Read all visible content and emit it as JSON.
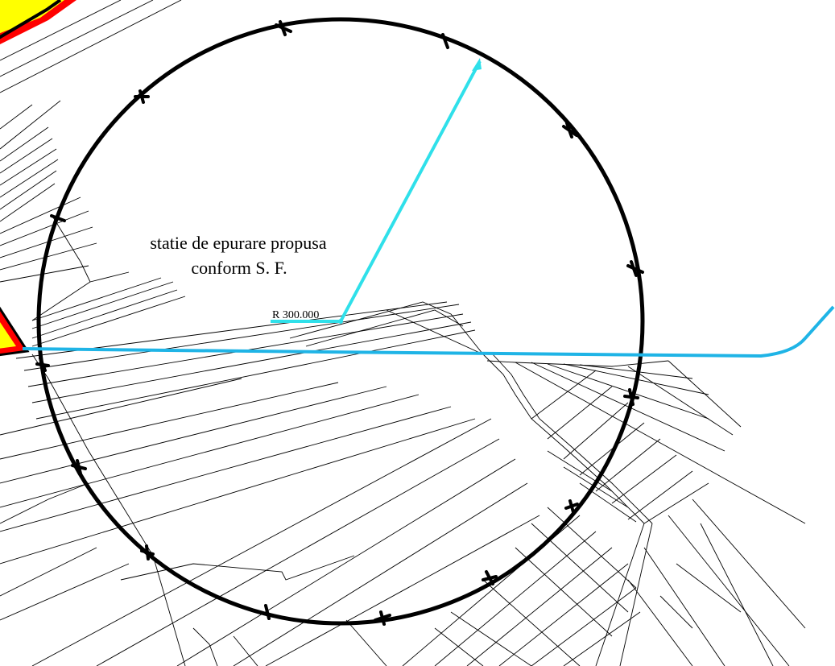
{
  "map": {
    "label_line1": "statie de epurare propusa",
    "label_line2": "conform S. F.",
    "radius_label": "R 300.000",
    "colors": {
      "background": "#ffffff",
      "parcel_lines": "#000000",
      "protection_circle": "#000000",
      "radius_line": "#2fe0ea",
      "pipeline": "#1fb4e6",
      "highlight_fill": "#ffff00",
      "highlight_border": "#ff0000"
    }
  }
}
